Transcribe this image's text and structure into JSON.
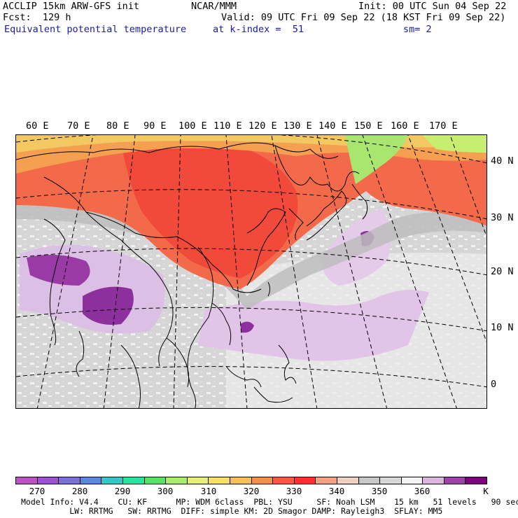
{
  "header": {
    "line1_left": "ACCLIP 15km ARW-GFS init",
    "line1_center": "NCAR/MMM",
    "line1_right": "Init: 00 UTC Sun 04 Sep 22",
    "line2_left": "Fcst:  129 h",
    "line2_right": "Valid: 09 UTC Fri 09 Sep 22 (18 KST Fri 09 Sep 22)",
    "line3_left": "Equivalent potential temperature",
    "line3_center": "at k-index =  51",
    "line3_right": "sm= 2"
  },
  "map": {
    "lon_labels": [
      "60 E",
      "70 E",
      "80 E",
      "90 E",
      "100 E",
      "110 E",
      "120 E",
      "130 E",
      "140 E",
      "150 E",
      "160 E",
      "170 E"
    ],
    "lat_labels": [
      "40 N",
      "30 N",
      "20 N",
      "10 N",
      "0"
    ]
  },
  "colorbar": {
    "colors": [
      "#c050c8",
      "#a050d8",
      "#7a70e0",
      "#5a86e6",
      "#30c8c8",
      "#30e0a0",
      "#50e860",
      "#a8f060",
      "#e8f070",
      "#f8e060",
      "#f8c050",
      "#f89040",
      "#f85a40",
      "#ff3030",
      "#f8a080",
      "#f0d0c0",
      "#c8c8c8",
      "#d8d8d8",
      "#f4f4f4",
      "#dcb8e0",
      "#a040a8",
      "#800080"
    ],
    "labels": [
      "270",
      "280",
      "290",
      "300",
      "310",
      "320",
      "330",
      "340",
      "350",
      "360"
    ],
    "unit": "K"
  },
  "footer": {
    "line1": "Model Info: V4.4    CU: KF      MP: WDM 6class  PBL: YSU     SF: Noah LSM    15 km   51 levels   90 sec",
    "line2": "          LW: RRTMG   SW: RRTMG  DIFF: simple KM: 2D Smagor DAMP: Rayleigh3  SFLAY: MM5"
  }
}
